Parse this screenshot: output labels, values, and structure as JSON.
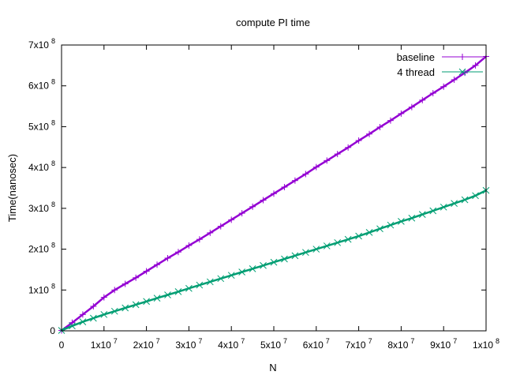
{
  "chart_data": {
    "type": "scatter",
    "title": "compute PI time",
    "xlabel": "N",
    "ylabel": "Time(nanosec)",
    "xlim": [
      0,
      100000000
    ],
    "ylim": [
      0,
      700000000
    ],
    "grid": false,
    "legend_position": "top-right",
    "x_ticks": [
      {
        "value": 0,
        "mantissa": "0",
        "exp": ""
      },
      {
        "value": 10000000,
        "mantissa": "1x10",
        "exp": "7"
      },
      {
        "value": 20000000,
        "mantissa": "2x10",
        "exp": "7"
      },
      {
        "value": 30000000,
        "mantissa": "3x10",
        "exp": "7"
      },
      {
        "value": 40000000,
        "mantissa": "4x10",
        "exp": "7"
      },
      {
        "value": 50000000,
        "mantissa": "5x10",
        "exp": "7"
      },
      {
        "value": 60000000,
        "mantissa": "6x10",
        "exp": "7"
      },
      {
        "value": 70000000,
        "mantissa": "7x10",
        "exp": "7"
      },
      {
        "value": 80000000,
        "mantissa": "8x10",
        "exp": "7"
      },
      {
        "value": 90000000,
        "mantissa": "9x10",
        "exp": "7"
      },
      {
        "value": 100000000,
        "mantissa": "1x10",
        "exp": "8"
      }
    ],
    "y_ticks": [
      {
        "value": 0,
        "mantissa": "0",
        "exp": ""
      },
      {
        "value": 100000000,
        "mantissa": "1x10",
        "exp": "8"
      },
      {
        "value": 200000000,
        "mantissa": "2x10",
        "exp": "8"
      },
      {
        "value": 300000000,
        "mantissa": "3x10",
        "exp": "8"
      },
      {
        "value": 400000000,
        "mantissa": "4x10",
        "exp": "8"
      },
      {
        "value": 500000000,
        "mantissa": "5x10",
        "exp": "8"
      },
      {
        "value": 600000000,
        "mantissa": "6x10",
        "exp": "8"
      },
      {
        "value": 700000000,
        "mantissa": "7x10",
        "exp": "8"
      }
    ],
    "series": [
      {
        "name": "baseline",
        "marker": "plus",
        "color": "#9400d3",
        "x": [
          0,
          2500000,
          5000000,
          7500000,
          10000000,
          12500000,
          15000000,
          17500000,
          20000000,
          22500000,
          25000000,
          27500000,
          30000000,
          32500000,
          35000000,
          37500000,
          40000000,
          42500000,
          45000000,
          47500000,
          50000000,
          52500000,
          55000000,
          57500000,
          60000000,
          62500000,
          65000000,
          67500000,
          70000000,
          72500000,
          75000000,
          77500000,
          80000000,
          82500000,
          85000000,
          87500000,
          90000000,
          92500000,
          95000000,
          97500000,
          100000000
        ],
        "y": [
          1000000,
          20000000,
          40000000,
          60000000,
          82000000,
          100000000,
          115000000,
          130000000,
          146000000,
          162000000,
          178000000,
          193000000,
          209000000,
          224000000,
          240000000,
          256000000,
          272000000,
          288000000,
          304000000,
          320000000,
          336000000,
          352000000,
          368000000,
          384000000,
          401000000,
          417000000,
          433000000,
          449000000,
          466000000,
          482000000,
          499000000,
          515000000,
          532000000,
          548000000,
          565000000,
          582000000,
          598000000,
          615000000,
          632000000,
          650000000,
          672000000
        ]
      },
      {
        "name": "4 thread",
        "marker": "cross",
        "color": "#009e73",
        "x": [
          0,
          2500000,
          5000000,
          7500000,
          10000000,
          12500000,
          15000000,
          17500000,
          20000000,
          22500000,
          25000000,
          27500000,
          30000000,
          32500000,
          35000000,
          37500000,
          40000000,
          42500000,
          45000000,
          47500000,
          50000000,
          52500000,
          55000000,
          57500000,
          60000000,
          62500000,
          65000000,
          67500000,
          70000000,
          72500000,
          75000000,
          77500000,
          80000000,
          82500000,
          85000000,
          87500000,
          90000000,
          92500000,
          95000000,
          97500000,
          100000000
        ],
        "y": [
          1000000,
          12000000,
          22000000,
          31000000,
          40000000,
          48000000,
          56000000,
          64000000,
          72000000,
          80000000,
          88000000,
          96000000,
          104000000,
          112000000,
          120000000,
          128000000,
          136000000,
          144000000,
          152000000,
          160000000,
          168000000,
          176000000,
          184000000,
          192000000,
          200000000,
          208000000,
          216000000,
          224000000,
          232000000,
          241000000,
          250000000,
          259000000,
          268000000,
          276000000,
          285000000,
          294000000,
          303000000,
          312000000,
          321000000,
          331000000,
          344000000
        ]
      }
    ]
  }
}
